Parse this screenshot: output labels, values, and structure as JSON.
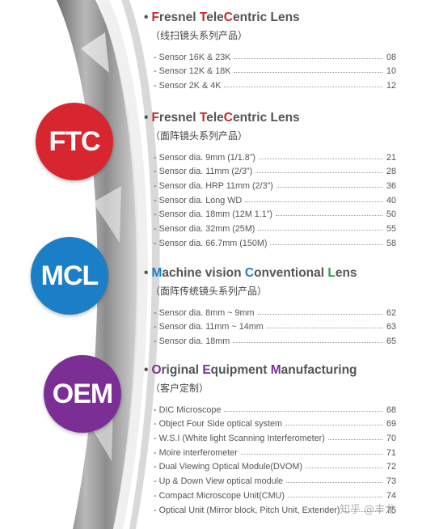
{
  "badges": [
    {
      "text": "FTC",
      "color": "#d7262f"
    },
    {
      "text": "MCL",
      "color": "#1a7fc6"
    },
    {
      "text": "OEM",
      "color": "#7b2f95"
    }
  ],
  "sections": [
    {
      "title_parts": [
        {
          "t": "F",
          "c": "#c62828"
        },
        {
          "t": "resnel ",
          "c": ""
        },
        {
          "t": "T",
          "c": "#c62828"
        },
        {
          "t": "ele",
          "c": ""
        },
        {
          "t": "C",
          "c": "#c62828"
        },
        {
          "t": "entric Lens",
          "c": ""
        }
      ],
      "subtitle": "（线扫镜头系列产品）",
      "items": [
        {
          "label": "- Sensor 16K & 23K",
          "page": "08"
        },
        {
          "label": "- Sensor 12K & 18K",
          "page": "10"
        },
        {
          "label": "- Sensor 2K & 4K",
          "page": "12"
        }
      ]
    },
    {
      "title_parts": [
        {
          "t": "F",
          "c": "#c62828"
        },
        {
          "t": "resnel ",
          "c": ""
        },
        {
          "t": "T",
          "c": "#c62828"
        },
        {
          "t": "ele",
          "c": ""
        },
        {
          "t": "C",
          "c": "#c62828"
        },
        {
          "t": "entric Lens",
          "c": ""
        }
      ],
      "subtitle": "（面阵镜头系列产品）",
      "items": [
        {
          "label": "- Sensor dia. 9mm (1/1.8”)",
          "page": "21"
        },
        {
          "label": "- Sensor dia. 11mm (2/3”)",
          "page": "28"
        },
        {
          "label": "- Sensor dia. HRP 11mm (2/3”)",
          "page": "36"
        },
        {
          "label": "- Sensor dia. Long WD",
          "page": "40"
        },
        {
          "label": "- Sensor dia. 18mm (12M 1.1”)",
          "page": "50"
        },
        {
          "label": "- Sensor dia. 32mm (25M)",
          "page": "55"
        },
        {
          "label": "- Sensor dia. 66.7mm (150M)",
          "page": "58"
        }
      ]
    },
    {
      "title_parts": [
        {
          "t": "M",
          "c": "#1a7fc6"
        },
        {
          "t": "achine vision ",
          "c": ""
        },
        {
          "t": "C",
          "c": "#1a7fc6"
        },
        {
          "t": "onventional ",
          "c": ""
        },
        {
          "t": "L",
          "c": "#2e9e3e"
        },
        {
          "t": "ens",
          "c": ""
        }
      ],
      "subtitle": "（面阵传统镜头系列产品）",
      "items": [
        {
          "label": "- Sensor dia. 8mm ~ 9mm",
          "page": "62"
        },
        {
          "label": "- Sensor dia. 11mm ~ 14mm",
          "page": "63"
        },
        {
          "label": "- Sensor dia. 18mm",
          "page": "65"
        }
      ]
    },
    {
      "title_parts": [
        {
          "t": "O",
          "c": "#7b2f95"
        },
        {
          "t": "riginal ",
          "c": ""
        },
        {
          "t": "E",
          "c": "#7b2f95"
        },
        {
          "t": "quipment ",
          "c": ""
        },
        {
          "t": "M",
          "c": "#7b2f95"
        },
        {
          "t": "anufacturing",
          "c": ""
        }
      ],
      "subtitle": "（客户定制）",
      "items": [
        {
          "label": "- DIC  Microscope",
          "page": "68"
        },
        {
          "label": "- Object Four Side optical system",
          "page": "69"
        },
        {
          "label": "- W.S.I (White light Scanning Interferometer)",
          "page": "70"
        },
        {
          "label": "- Moire interferometer",
          "page": "71"
        },
        {
          "label": "- Dual Viewing Optical Module(DVOM)",
          "page": "72"
        },
        {
          "label": "- Up & Down View optical module",
          "page": "73"
        },
        {
          "label": "- Compact Microscope Unit(CMU)",
          "page": "74"
        },
        {
          "label": "- Optical Unit (Mirror block, Pitch Unit, Extender)",
          "page": "75"
        }
      ]
    }
  ],
  "watermark": "知乎 @丰龙"
}
